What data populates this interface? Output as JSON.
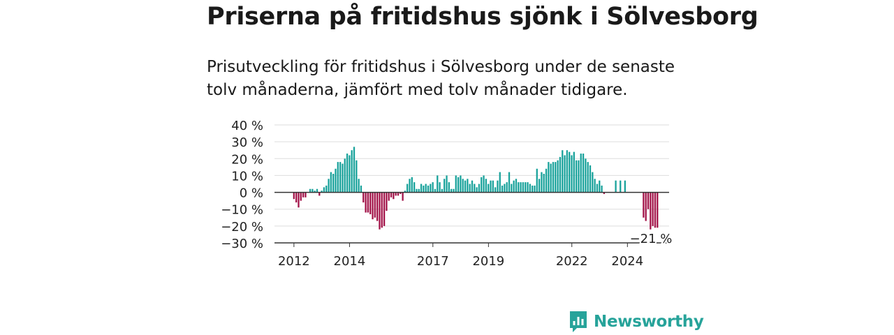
{
  "title": "Priserna på fritidshus sjönk i Sölvesborg",
  "subtitle": "Prisutveckling för fritidshus i Sölvesborg under de senaste tolv månaderna, jämfört med tolv månader tidigare.",
  "brand": {
    "name": "Newsworthy",
    "color": "#27a39a"
  },
  "colors": {
    "positive": "#1ba39c",
    "negative": "#a3154a",
    "grid": "#dddddd",
    "zero_line": "#333333"
  },
  "chart_data": {
    "type": "bar",
    "ylim": [
      -30,
      40
    ],
    "xlim": [
      2011.3,
      2025.5
    ],
    "y_ticks": [
      40,
      30,
      20,
      10,
      0,
      -10,
      -20,
      -30
    ],
    "y_tick_labels": [
      "40 %",
      "30 %",
      "20 %",
      "10 %",
      "0 %",
      "−10 %",
      "−20 %",
      "−30 %"
    ],
    "x_ticks": [
      2012,
      2014,
      2017,
      2019,
      2022,
      2024
    ],
    "x_tick_labels": [
      "2012",
      "2014",
      "2017",
      "2019",
      "2022",
      "2024"
    ],
    "annotation": {
      "text": "−21 %",
      "x": 2024.92,
      "y": -21
    },
    "grid": true,
    "bar_step": 0.0833,
    "series": [
      {
        "start": 2012.0,
        "values": [
          -4,
          -6,
          -9,
          -5,
          -3,
          -3,
          0,
          2,
          2,
          1,
          2,
          -2,
          1,
          3,
          4,
          8,
          12,
          11,
          14,
          18,
          18,
          17,
          20,
          23,
          22,
          25,
          27,
          19,
          8,
          4,
          -6,
          -12,
          -12,
          -13,
          -16,
          -15,
          -17,
          -22,
          -21,
          -20,
          -11,
          -5,
          -3,
          -4,
          -2,
          -2,
          -1,
          -5,
          1
        ]
      },
      {
        "start": 2016.08,
        "values": [
          5,
          8,
          9,
          6,
          2,
          2,
          5,
          4,
          5,
          4,
          5,
          6,
          2,
          10,
          6,
          2,
          8,
          10,
          6,
          2,
          2,
          10,
          9,
          10,
          8,
          7,
          8,
          5,
          7,
          5,
          3,
          5,
          9,
          10,
          8,
          5,
          7,
          7,
          3,
          7,
          12,
          4,
          5,
          6,
          12,
          5,
          7,
          8,
          6,
          6,
          6,
          6,
          6,
          5,
          4,
          4,
          14,
          8,
          12,
          11,
          14,
          18,
          17,
          18,
          18,
          19,
          21,
          25,
          22,
          25,
          24,
          22,
          24,
          19,
          19,
          23,
          23,
          20,
          18,
          16,
          12,
          8,
          5,
          7,
          4,
          -1
        ]
      },
      {
        "start": 2023.58,
        "values": [
          7,
          0,
          7,
          0,
          7
        ]
      },
      {
        "start": 2024.58,
        "values": [
          -15,
          -17,
          -10,
          -22,
          -20,
          -21,
          -21
        ]
      }
    ]
  }
}
